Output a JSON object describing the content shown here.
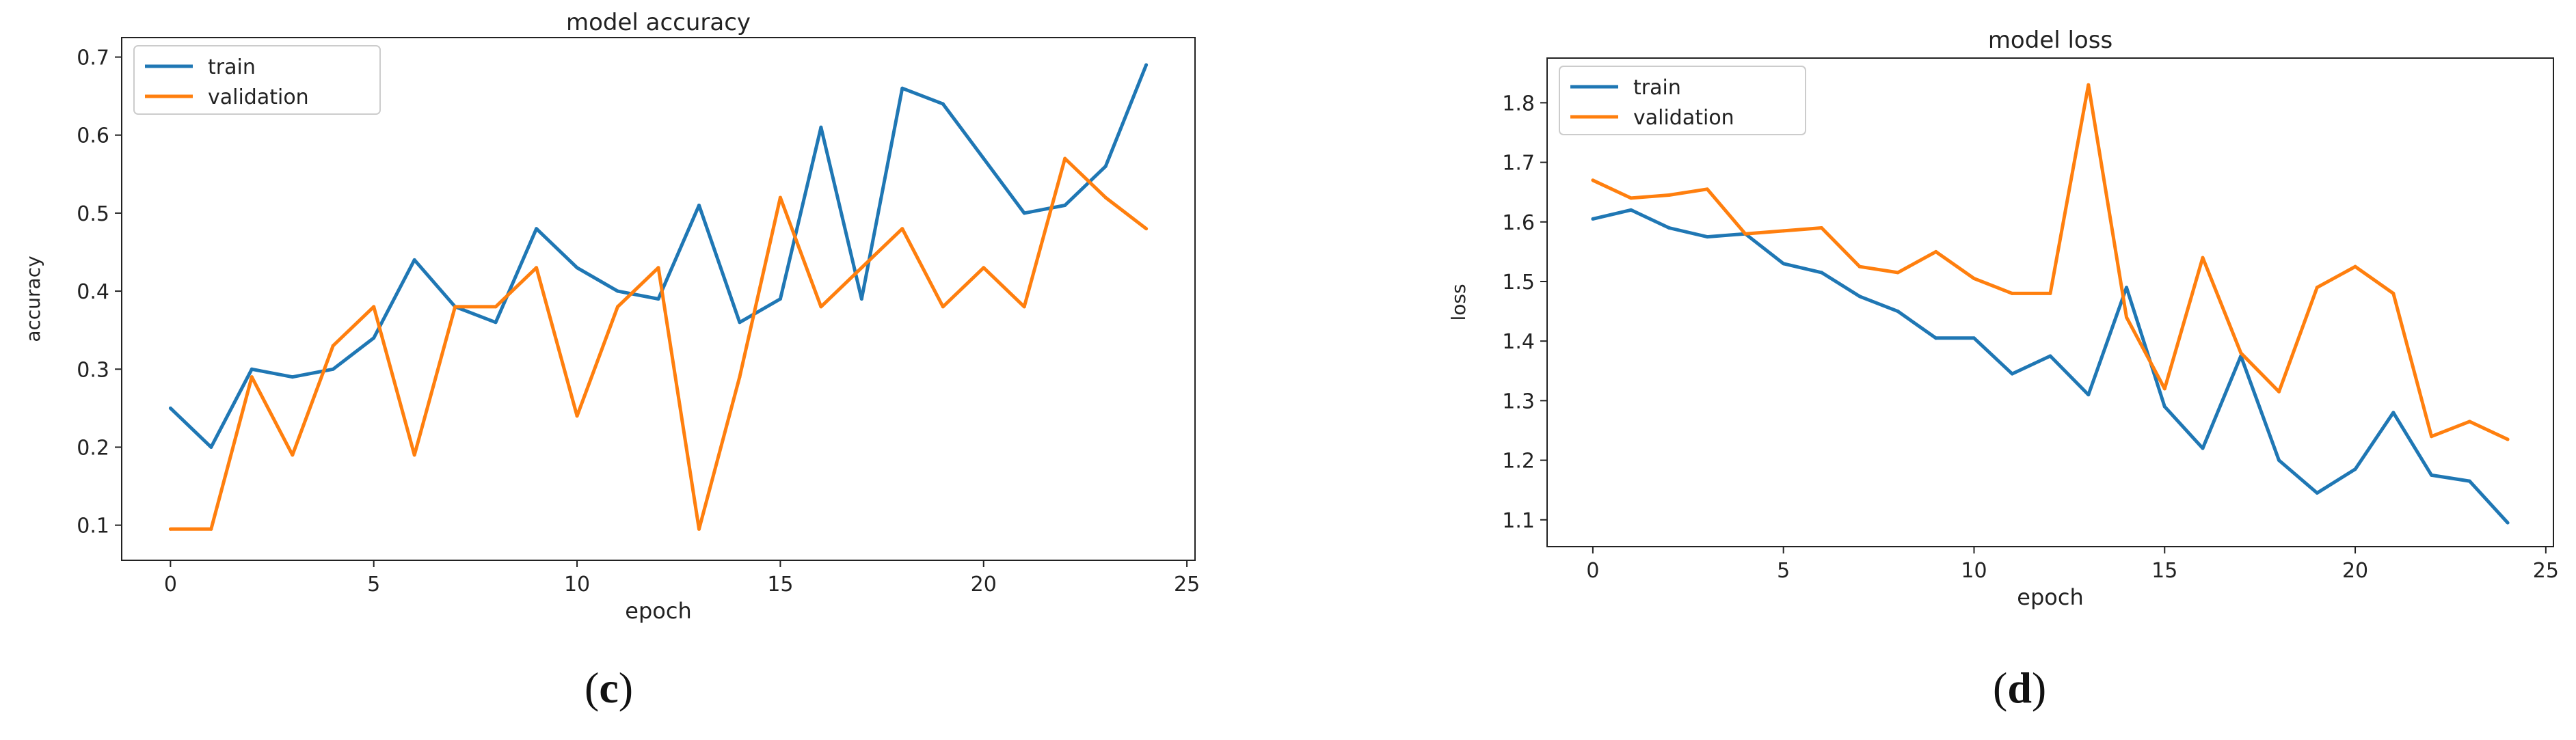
{
  "figure": {
    "label_c": "c",
    "label_d": "d"
  },
  "colors": {
    "train": "#1f77b4",
    "validation": "#ff7f0e",
    "axis": "#222222"
  },
  "chart_data": [
    {
      "type": "line",
      "title": "model accuracy",
      "xlabel": "epoch",
      "ylabel": "accuracy",
      "xlim": [
        -1.2,
        25.2
      ],
      "ylim": [
        0.055,
        0.725
      ],
      "x_ticks": [
        0,
        5,
        10,
        15,
        20,
        25
      ],
      "y_ticks": [
        0.1,
        0.2,
        0.3,
        0.4,
        0.5,
        0.6,
        0.7
      ],
      "legend": "top-left",
      "grid": false,
      "x": [
        0,
        1,
        2,
        3,
        4,
        5,
        6,
        7,
        8,
        9,
        10,
        11,
        12,
        13,
        14,
        15,
        16,
        17,
        18,
        19,
        20,
        21,
        22,
        23,
        24
      ],
      "series": [
        {
          "name": "train",
          "color": "#1f77b4",
          "values": [
            0.25,
            0.2,
            0.3,
            0.29,
            0.3,
            0.34,
            0.44,
            0.38,
            0.36,
            0.48,
            0.43,
            0.4,
            0.39,
            0.51,
            0.36,
            0.39,
            0.61,
            0.39,
            0.66,
            0.64,
            0.57,
            0.5,
            0.51,
            0.56,
            0.69
          ]
        },
        {
          "name": "validation",
          "color": "#ff7f0e",
          "values": [
            0.095,
            0.095,
            0.29,
            0.19,
            0.33,
            0.38,
            0.19,
            0.38,
            0.38,
            0.43,
            0.24,
            0.38,
            0.43,
            0.095,
            0.29,
            0.52,
            0.38,
            0.43,
            0.48,
            0.38,
            0.43,
            0.38,
            0.57,
            0.52,
            0.48
          ]
        }
      ]
    },
    {
      "type": "line",
      "title": "model loss",
      "xlabel": "epoch",
      "ylabel": "loss",
      "xlim": [
        -1.2,
        25.2
      ],
      "ylim": [
        1.055,
        1.875
      ],
      "x_ticks": [
        0,
        5,
        10,
        15,
        20,
        25
      ],
      "y_ticks": [
        1.1,
        1.2,
        1.3,
        1.4,
        1.5,
        1.6,
        1.7,
        1.8
      ],
      "legend": "top-left",
      "grid": false,
      "x": [
        0,
        1,
        2,
        3,
        4,
        5,
        6,
        7,
        8,
        9,
        10,
        11,
        12,
        13,
        14,
        15,
        16,
        17,
        18,
        19,
        20,
        21,
        22,
        23,
        24
      ],
      "series": [
        {
          "name": "train",
          "color": "#1f77b4",
          "values": [
            1.605,
            1.62,
            1.59,
            1.575,
            1.58,
            1.53,
            1.515,
            1.475,
            1.45,
            1.405,
            1.405,
            1.345,
            1.375,
            1.31,
            1.49,
            1.29,
            1.22,
            1.375,
            1.2,
            1.145,
            1.185,
            1.28,
            1.175,
            1.165,
            1.095
          ]
        },
        {
          "name": "validation",
          "color": "#ff7f0e",
          "values": [
            1.67,
            1.64,
            1.645,
            1.655,
            1.58,
            1.585,
            1.59,
            1.525,
            1.515,
            1.55,
            1.505,
            1.48,
            1.48,
            1.83,
            1.44,
            1.32,
            1.54,
            1.38,
            1.315,
            1.49,
            1.525,
            1.48,
            1.24,
            1.265,
            1.235
          ]
        }
      ]
    }
  ]
}
